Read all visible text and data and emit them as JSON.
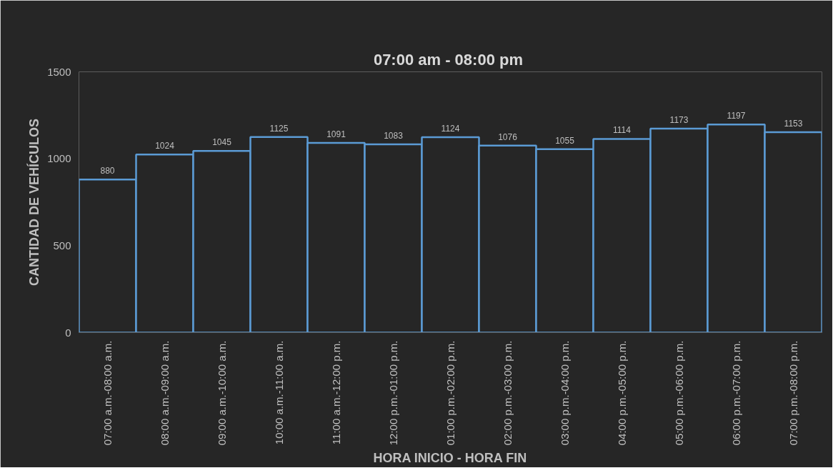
{
  "chart_data": {
    "type": "bar",
    "title": "07:00 am -  08:00 pm",
    "xlabel": "HORA INICIO - HORA FIN",
    "ylabel": "CANTIDAD DE VEHÍCULOS",
    "categories": [
      "07:00 a.m.-08:00 a.m.",
      "08:00 a.m.-09:00 a.m.",
      "09:00 a.m.-10:00 a.m.",
      "10:00 a.m.-11:00 a.m.",
      "11:00 a.m.-12:00 p.m.",
      "12:00 p.m.-01:00 p.m.",
      "01:00 p.m.-02:00 p.m.",
      "02:00 p.m.-03:00 p.m.",
      "03:00 p.m.-04:00 p.m.",
      "04:00 p.m.-05:00 p.m.",
      "05:00 p.m.-06:00 p.m.",
      "06:00 p.m.-07:00 p.m.",
      "07:00 p.m.-08:00 p.m."
    ],
    "values": [
      880,
      1024,
      1045,
      1125,
      1091,
      1083,
      1124,
      1076,
      1055,
      1114,
      1173,
      1197,
      1153
    ],
    "color": "#5b9bd5",
    "ylim": [
      0,
      1500
    ],
    "yticks": [
      0,
      500,
      1000,
      1500
    ],
    "grid": false,
    "data_labels": true
  }
}
